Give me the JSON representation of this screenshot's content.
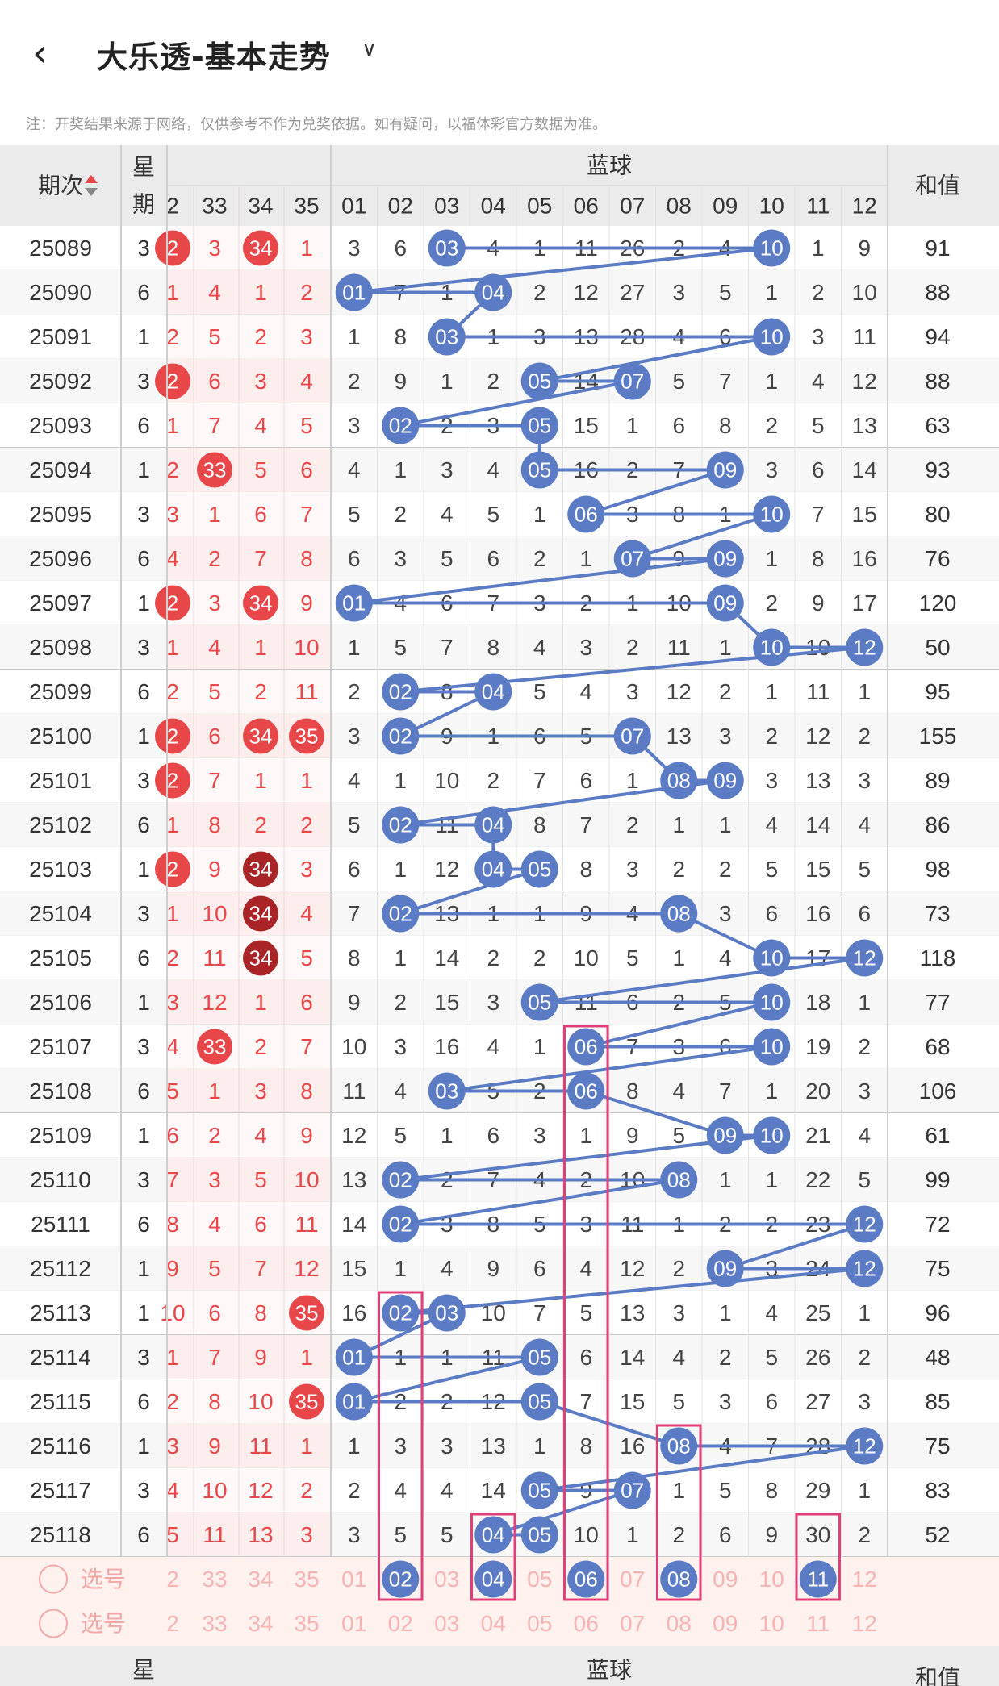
{
  "header": {
    "title": "大乐透-基本走势",
    "back_icon": "back-icon",
    "dropdown_icon": "chevron-down-icon"
  },
  "note": "注：开奖结果来源于网络，仅供参考不作为兑奖依据。如有疑问，以福体彩官方数据为准。",
  "table_header": {
    "issue": "期次",
    "week": "星期",
    "blue_group": "蓝球",
    "sum": "和值",
    "week_bottom": "星",
    "sum_bottom": "和值"
  },
  "front_columns_visible": [
    "2",
    "33",
    "34",
    "35"
  ],
  "blue_columns": [
    "01",
    "02",
    "03",
    "04",
    "05",
    "06",
    "07",
    "08",
    "09",
    "10",
    "11",
    "12"
  ],
  "selector_label": "选号",
  "selection_blue": [
    2,
    4,
    6,
    8,
    11
  ],
  "colors": {
    "red": "#e8474a",
    "blue_ball": "#5b7cc4",
    "highlight_box": "#e0407a",
    "grid": "#d6d6d6"
  },
  "rows": [
    {
      "issue": "25089",
      "week": "3",
      "c1": "2",
      "c2": "3",
      "c3": "34",
      "c4": "1",
      "hit1": [
        1,
        3
      ],
      "blue": [
        3,
        6,
        3,
        4,
        1,
        11,
        26,
        2,
        4,
        10,
        1,
        9
      ],
      "hits": [
        3,
        10
      ],
      "sum": "91"
    },
    {
      "issue": "25090",
      "week": "6",
      "c1": "1",
      "c2": "4",
      "c3": "1",
      "c4": "2",
      "hit1": [],
      "blue": [
        1,
        7,
        1,
        4,
        2,
        12,
        27,
        3,
        5,
        1,
        2,
        10
      ],
      "hits": [
        1,
        4
      ],
      "sum": "88"
    },
    {
      "issue": "25091",
      "week": "1",
      "c1": "2",
      "c2": "5",
      "c3": "2",
      "c4": "3",
      "hit1": [],
      "blue": [
        1,
        8,
        3,
        1,
        3,
        13,
        28,
        4,
        6,
        10,
        3,
        11
      ],
      "hits": [
        3,
        10
      ],
      "sum": "94"
    },
    {
      "issue": "25092",
      "week": "3",
      "c1": "2",
      "c2": "6",
      "c3": "3",
      "c4": "4",
      "hit1": [
        1
      ],
      "blue": [
        2,
        9,
        1,
        2,
        5,
        14,
        7,
        5,
        7,
        1,
        4,
        12
      ],
      "hits": [
        5,
        7
      ],
      "sum": "88"
    },
    {
      "issue": "25093",
      "week": "6",
      "c1": "1",
      "c2": "7",
      "c3": "4",
      "c4": "5",
      "hit1": [],
      "blue": [
        3,
        2,
        2,
        3,
        5,
        15,
        1,
        6,
        8,
        2,
        5,
        13
      ],
      "hits": [
        2,
        5
      ],
      "sum": "63"
    },
    {
      "issue": "25094",
      "week": "1",
      "c1": "2",
      "c2": "33",
      "c3": "5",
      "c4": "6",
      "hit1": [
        2
      ],
      "blue": [
        4,
        1,
        3,
        4,
        5,
        16,
        2,
        7,
        9,
        3,
        6,
        14
      ],
      "hits": [
        5,
        9
      ],
      "sum": "93"
    },
    {
      "issue": "25095",
      "week": "3",
      "c1": "3",
      "c2": "1",
      "c3": "6",
      "c4": "7",
      "hit1": [],
      "blue": [
        5,
        2,
        4,
        5,
        1,
        6,
        3,
        8,
        1,
        10,
        7,
        15
      ],
      "hits": [
        6,
        10
      ],
      "sum": "80"
    },
    {
      "issue": "25096",
      "week": "6",
      "c1": "4",
      "c2": "2",
      "c3": "7",
      "c4": "8",
      "hit1": [],
      "blue": [
        6,
        3,
        5,
        6,
        2,
        1,
        7,
        9,
        9,
        1,
        8,
        16
      ],
      "hits": [
        7,
        9
      ],
      "sum": "76"
    },
    {
      "issue": "25097",
      "week": "1",
      "c1": "2",
      "c2": "3",
      "c3": "34",
      "c4": "9",
      "hit1": [
        1,
        3
      ],
      "blue": [
        1,
        4,
        6,
        7,
        3,
        2,
        1,
        10,
        9,
        2,
        9,
        17
      ],
      "hits": [
        1,
        9
      ],
      "sum": "120"
    },
    {
      "issue": "25098",
      "week": "3",
      "c1": "1",
      "c2": "4",
      "c3": "1",
      "c4": "10",
      "hit1": [],
      "blue": [
        1,
        5,
        7,
        8,
        4,
        3,
        2,
        11,
        1,
        10,
        10,
        12
      ],
      "hits": [
        10,
        12
      ],
      "sum": "50"
    },
    {
      "issue": "25099",
      "week": "6",
      "c1": "2",
      "c2": "5",
      "c3": "2",
      "c4": "11",
      "hit1": [],
      "blue": [
        2,
        2,
        8,
        4,
        5,
        4,
        3,
        12,
        2,
        1,
        11,
        1
      ],
      "hits": [
        2,
        4
      ],
      "sum": "95"
    },
    {
      "issue": "25100",
      "week": "1",
      "c1": "2",
      "c2": "6",
      "c3": "34",
      "c4": "35",
      "hit1": [
        1,
        3,
        4
      ],
      "blue": [
        3,
        2,
        9,
        1,
        6,
        5,
        7,
        13,
        3,
        2,
        12,
        2
      ],
      "hits": [
        2,
        7
      ],
      "sum": "155"
    },
    {
      "issue": "25101",
      "week": "3",
      "c1": "2",
      "c2": "7",
      "c3": "1",
      "c4": "1",
      "hit1": [
        1
      ],
      "blue": [
        4,
        1,
        10,
        2,
        7,
        6,
        1,
        8,
        9,
        3,
        13,
        3
      ],
      "hits": [
        8,
        9
      ],
      "sum": "89"
    },
    {
      "issue": "25102",
      "week": "6",
      "c1": "1",
      "c2": "8",
      "c3": "2",
      "c4": "2",
      "hit1": [],
      "blue": [
        5,
        2,
        11,
        4,
        8,
        7,
        2,
        1,
        1,
        4,
        14,
        4
      ],
      "hits": [
        2,
        4
      ],
      "sum": "86"
    },
    {
      "issue": "25103",
      "week": "1",
      "c1": "2",
      "c2": "9",
      "c3": "34",
      "c4": "3",
      "hit1": [
        1,
        3
      ],
      "blue": [
        6,
        1,
        12,
        4,
        5,
        8,
        3,
        2,
        2,
        5,
        15,
        5
      ],
      "hits": [
        4,
        5
      ],
      "sum": "98"
    },
    {
      "issue": "25104",
      "week": "3",
      "c1": "1",
      "c2": "10",
      "c3": "34",
      "c4": "4",
      "hit1": [
        3
      ],
      "blue": [
        7,
        2,
        13,
        1,
        1,
        9,
        4,
        8,
        3,
        6,
        16,
        6
      ],
      "hits": [
        2,
        8
      ],
      "sum": "73"
    },
    {
      "issue": "25105",
      "week": "6",
      "c1": "2",
      "c2": "11",
      "c3": "34",
      "c4": "5",
      "hit1": [
        3
      ],
      "blue": [
        8,
        1,
        14,
        2,
        2,
        10,
        5,
        1,
        4,
        10,
        17,
        12
      ],
      "hits": [
        10,
        12
      ],
      "sum": "118"
    },
    {
      "issue": "25106",
      "week": "1",
      "c1": "3",
      "c2": "12",
      "c3": "1",
      "c4": "6",
      "hit1": [],
      "blue": [
        9,
        2,
        15,
        3,
        5,
        11,
        6,
        2,
        5,
        10,
        18,
        1
      ],
      "hits": [
        5,
        10
      ],
      "sum": "77"
    },
    {
      "issue": "25107",
      "week": "3",
      "c1": "4",
      "c2": "33",
      "c3": "2",
      "c4": "7",
      "hit1": [
        2
      ],
      "blue": [
        10,
        3,
        16,
        4,
        1,
        6,
        7,
        3,
        6,
        10,
        19,
        2
      ],
      "hits": [
        6,
        10
      ],
      "sum": "68"
    },
    {
      "issue": "25108",
      "week": "6",
      "c1": "5",
      "c2": "1",
      "c3": "3",
      "c4": "8",
      "hit1": [],
      "blue": [
        11,
        4,
        3,
        5,
        2,
        6,
        8,
        4,
        7,
        1,
        20,
        3
      ],
      "hits": [
        3,
        6
      ],
      "sum": "106"
    },
    {
      "issue": "25109",
      "week": "1",
      "c1": "6",
      "c2": "2",
      "c3": "4",
      "c4": "9",
      "hit1": [],
      "blue": [
        12,
        5,
        1,
        6,
        3,
        1,
        9,
        5,
        9,
        10,
        21,
        4
      ],
      "hits": [
        9,
        10
      ],
      "sum": "61"
    },
    {
      "issue": "25110",
      "week": "3",
      "c1": "7",
      "c2": "3",
      "c3": "5",
      "c4": "10",
      "hit1": [],
      "blue": [
        13,
        2,
        2,
        7,
        4,
        2,
        10,
        8,
        1,
        1,
        22,
        5
      ],
      "hits": [
        2,
        8
      ],
      "sum": "99"
    },
    {
      "issue": "25111",
      "week": "6",
      "c1": "8",
      "c2": "4",
      "c3": "6",
      "c4": "11",
      "hit1": [],
      "blue": [
        14,
        2,
        3,
        8,
        5,
        3,
        11,
        1,
        2,
        2,
        23,
        12
      ],
      "hits": [
        2,
        12
      ],
      "sum": "72"
    },
    {
      "issue": "25112",
      "week": "1",
      "c1": "9",
      "c2": "5",
      "c3": "7",
      "c4": "12",
      "hit1": [],
      "blue": [
        15,
        1,
        4,
        9,
        6,
        4,
        12,
        2,
        9,
        3,
        24,
        12
      ],
      "hits": [
        9,
        12
      ],
      "sum": "75"
    },
    {
      "issue": "25113",
      "week": "1",
      "c1": "10",
      "c2": "6",
      "c3": "8",
      "c4": "35",
      "hit1": [
        4
      ],
      "blue": [
        16,
        2,
        3,
        10,
        7,
        5,
        13,
        3,
        1,
        4,
        25,
        1
      ],
      "hits": [
        2,
        3
      ],
      "sum": "96"
    },
    {
      "issue": "25114",
      "week": "3",
      "c1": "1",
      "c2": "7",
      "c3": "9",
      "c4": "1",
      "hit1": [],
      "blue": [
        1,
        1,
        1,
        11,
        5,
        6,
        14,
        4,
        2,
        5,
        26,
        2
      ],
      "hits": [
        1,
        5
      ],
      "sum": "48"
    },
    {
      "issue": "25115",
      "week": "6",
      "c1": "2",
      "c2": "8",
      "c3": "10",
      "c4": "35",
      "hit1": [
        4
      ],
      "blue": [
        1,
        2,
        2,
        12,
        5,
        7,
        15,
        5,
        3,
        6,
        27,
        3
      ],
      "hits": [
        1,
        5
      ],
      "sum": "85"
    },
    {
      "issue": "25116",
      "week": "1",
      "c1": "3",
      "c2": "9",
      "c3": "11",
      "c4": "1",
      "hit1": [],
      "blue": [
        1,
        3,
        3,
        13,
        1,
        8,
        16,
        8,
        4,
        7,
        28,
        12
      ],
      "hits": [
        8,
        12
      ],
      "sum": "75"
    },
    {
      "issue": "25117",
      "week": "3",
      "c1": "4",
      "c2": "10",
      "c3": "12",
      "c4": "2",
      "hit1": [],
      "blue": [
        2,
        4,
        4,
        14,
        5,
        9,
        7,
        1,
        5,
        8,
        29,
        1
      ],
      "hits": [
        5,
        7
      ],
      "sum": "83"
    },
    {
      "issue": "25118",
      "week": "6",
      "c1": "5",
      "c2": "11",
      "c3": "13",
      "c4": "3",
      "hit1": [],
      "blue": [
        3,
        5,
        5,
        4,
        5,
        10,
        1,
        2,
        6,
        9,
        30,
        2
      ],
      "hits": [
        4,
        5
      ],
      "sum": "52"
    }
  ]
}
